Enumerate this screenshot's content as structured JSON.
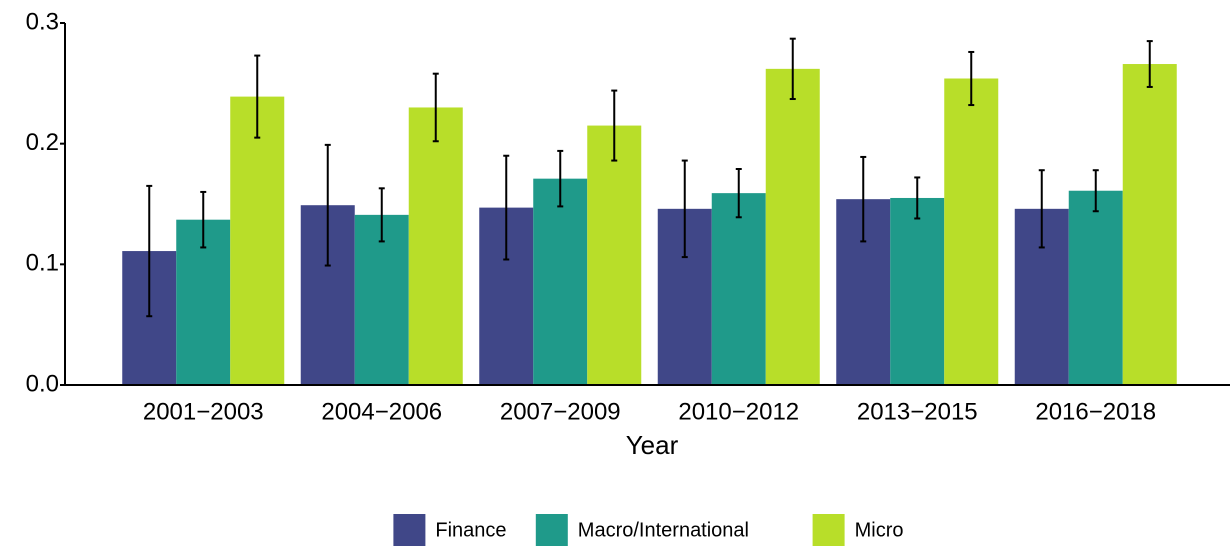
{
  "chart_data": {
    "type": "bar",
    "x_label": "Year",
    "categories": [
      "2001−2003",
      "2004−2006",
      "2007−2009",
      "2010−2012",
      "2013−2015",
      "2016−2018"
    ],
    "series": [
      {
        "name": "Finance",
        "color": "#404788",
        "values": [
          0.111,
          0.149,
          0.147,
          0.146,
          0.154,
          0.146
        ],
        "errors": [
          0.054,
          0.05,
          0.043,
          0.04,
          0.035,
          0.032
        ]
      },
      {
        "name": "Macro/International",
        "color": "#1f9a8a",
        "values": [
          0.137,
          0.141,
          0.171,
          0.159,
          0.155,
          0.161
        ],
        "errors": [
          0.023,
          0.022,
          0.023,
          0.02,
          0.017,
          0.017
        ]
      },
      {
        "name": "Micro",
        "color": "#b8de29",
        "values": [
          0.239,
          0.23,
          0.215,
          0.262,
          0.254,
          0.266
        ],
        "errors": [
          0.034,
          0.028,
          0.029,
          0.025,
          0.022,
          0.019
        ]
      }
    ],
    "ylim": [
      0,
      0.3
    ],
    "yticks": [
      {
        "value": 0,
        "label": "0.0"
      },
      0.1,
      0.2,
      0.3
    ],
    "grid": false,
    "legend": "bottom"
  }
}
